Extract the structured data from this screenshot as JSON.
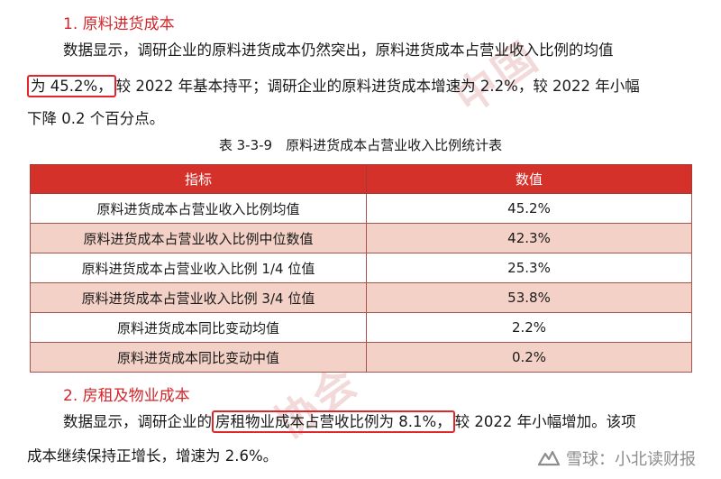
{
  "section1": {
    "heading": "1. 原料进货成本",
    "line1": "数据显示，调研企业的原料进货成本仍然突出，原料进货成本占营业收入比例的均值",
    "line2_highlight": "为 45.2%，",
    "line2_rest": "较 2022 年基本持平；调研企业的原料进货成本增速为 2.2%，较 2022 年小幅",
    "line3": "下降 0.2 个百分点。"
  },
  "table": {
    "caption": "表 3-3-9　原料进货成本占营业收入比例统计表",
    "headers": [
      "指标",
      "数值"
    ],
    "rows": [
      {
        "label": "原料进货成本占营业收入比例均值",
        "value": "45.2%"
      },
      {
        "label": "原料进货成本占营业收入比例中位数值",
        "value": "42.3%"
      },
      {
        "label": "原料进货成本占营业收入比例 1/4 位值",
        "value": "25.3%"
      },
      {
        "label": "原料进货成本占营业收入比例 3/4 位值",
        "value": "53.8%"
      },
      {
        "label": "原料进货成本同比变动均值",
        "value": "2.2%"
      },
      {
        "label": "原料进货成本同比变动中值",
        "value": "0.2%"
      }
    ]
  },
  "section2": {
    "heading": "2. 房租及物业成本",
    "line1_pre": "数据显示，调研企业的",
    "line1_highlight": "房租物业成本占营收比例为 8.1%，",
    "line1_post": "较 2022 年小幅增加。该项",
    "line2": "成本继续保持正增长，增速为 2.6%。"
  },
  "footer": {
    "logo_text": "雪球：小北读财报"
  },
  "colors": {
    "accent_red": "#d2262b",
    "table_header": "#d5312b",
    "row_shade": "#f3d1c6",
    "highlight_border": "#e0252c"
  }
}
